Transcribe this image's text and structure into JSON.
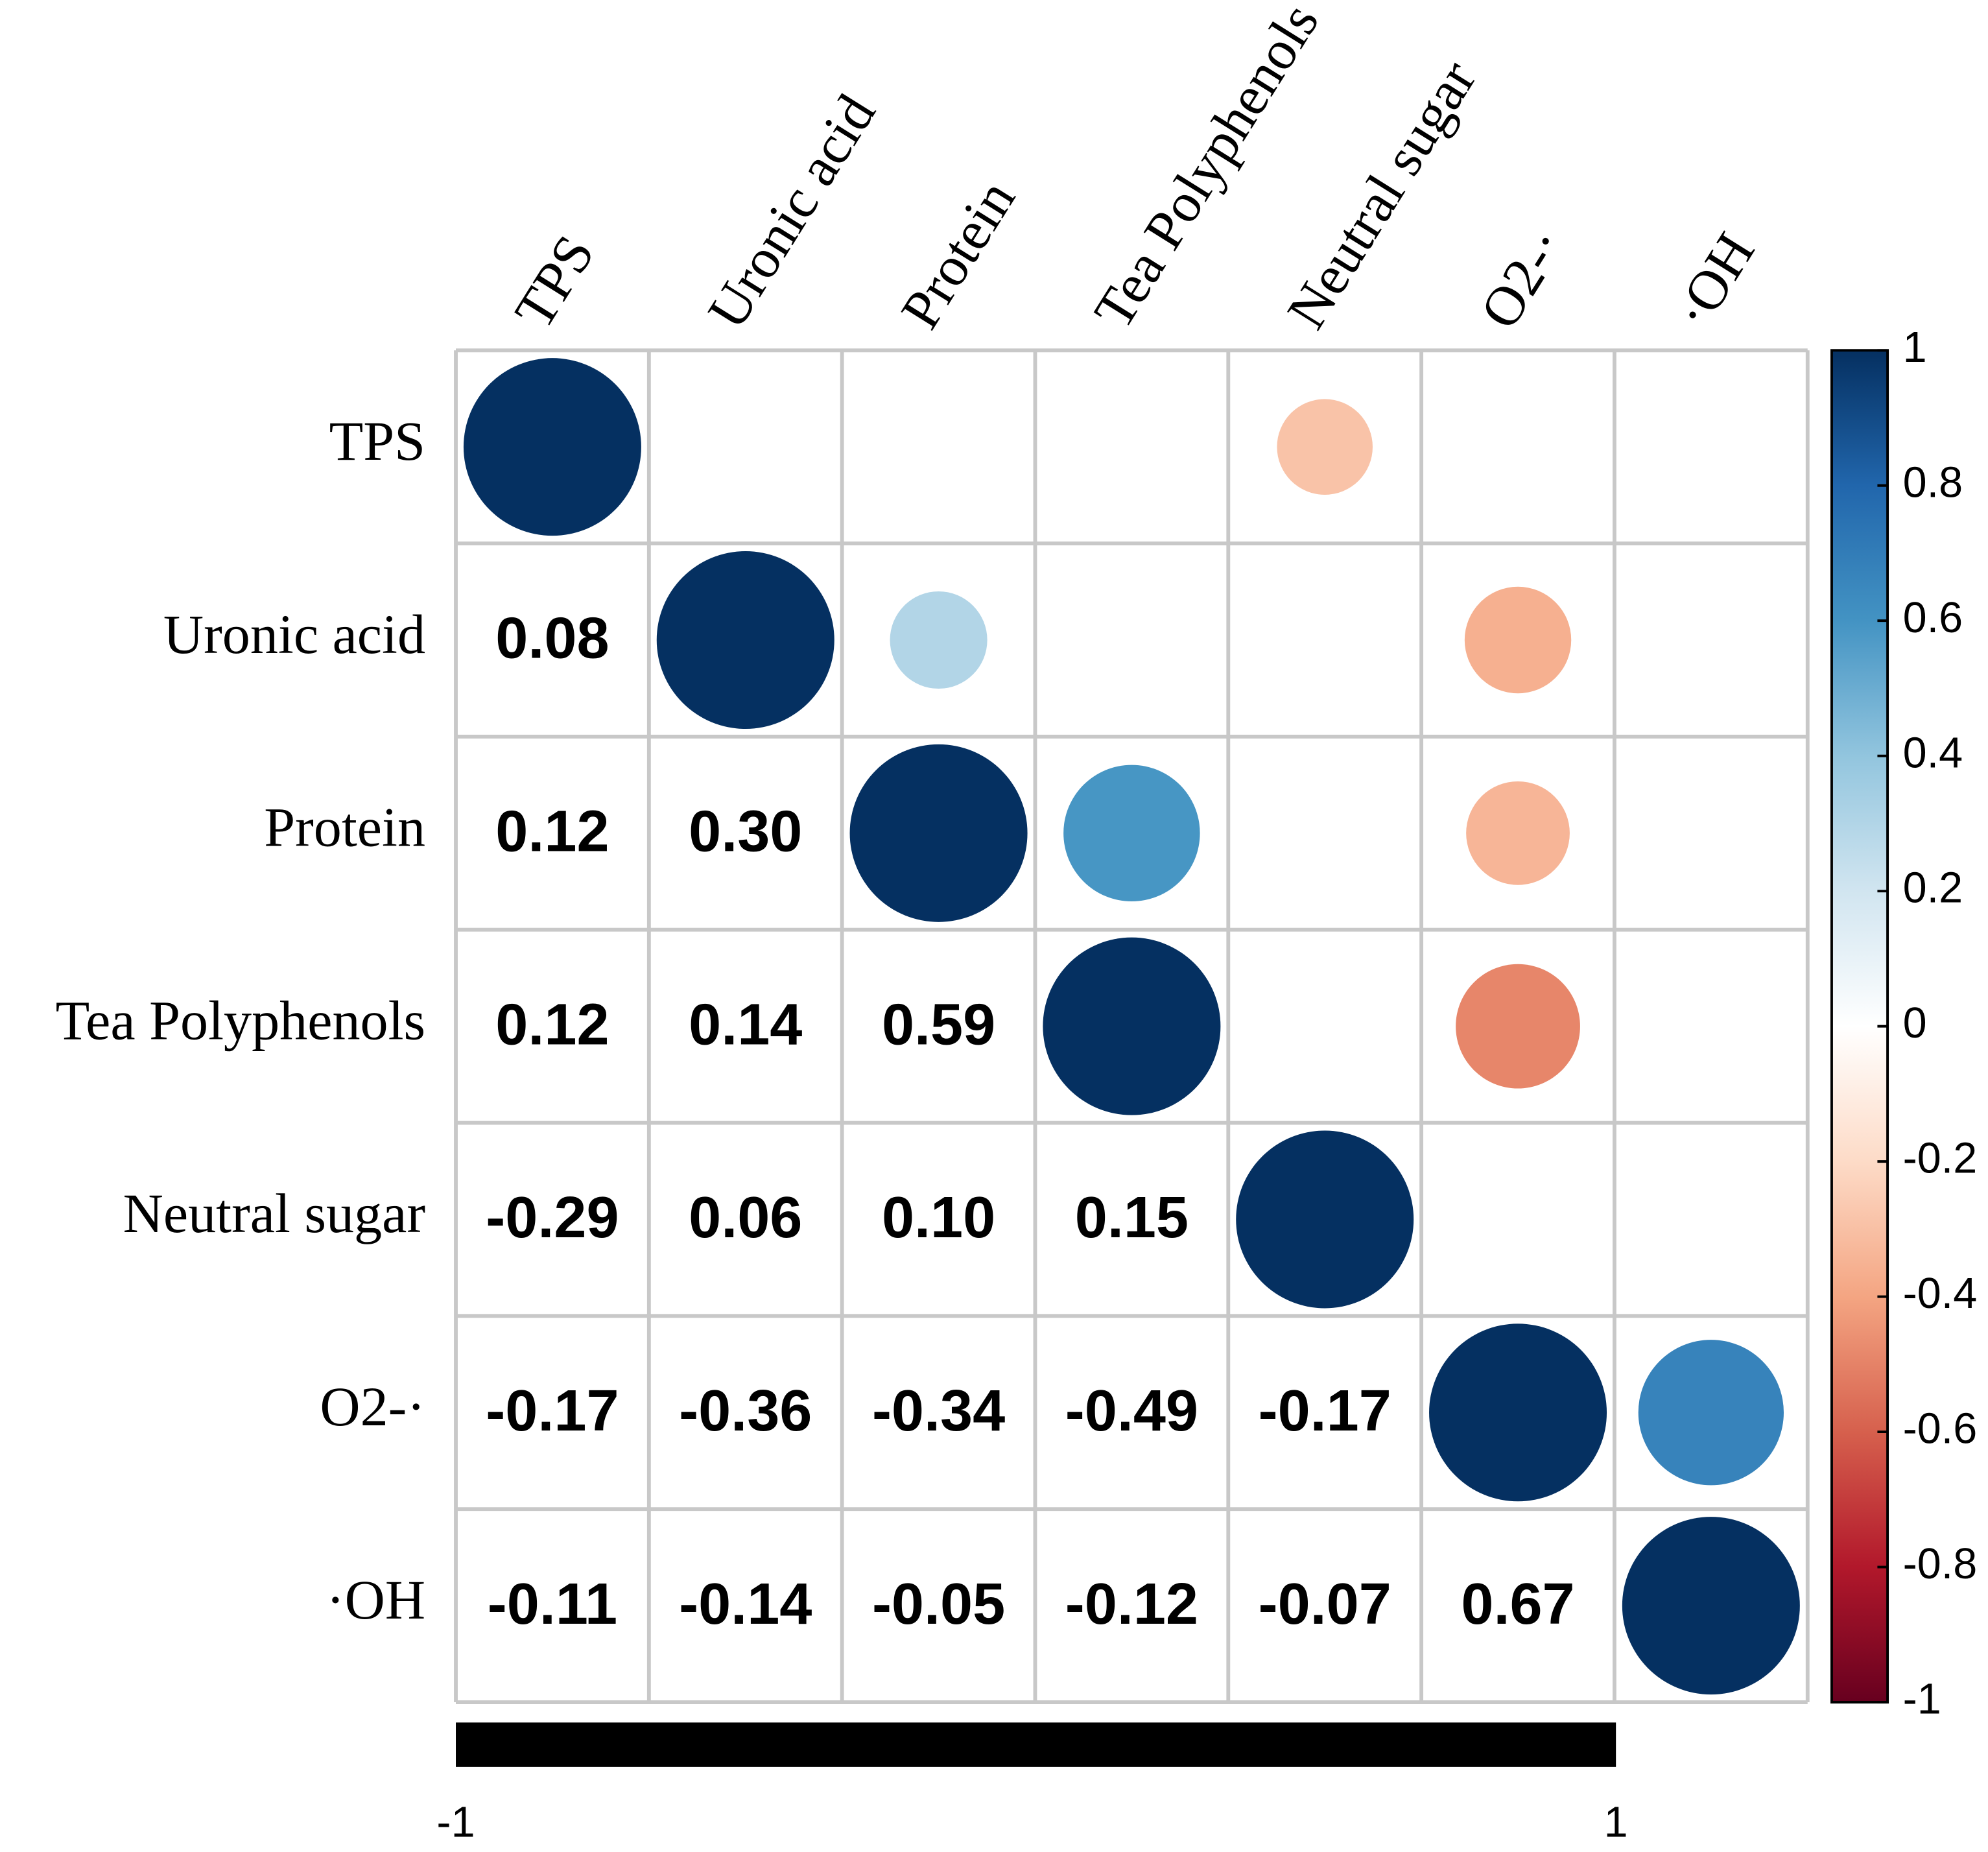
{
  "chart_data": {
    "type": "corrplot",
    "labels": [
      "TPS",
      "Uronic acid",
      "Protein",
      "Tea Polyphenols",
      "Neutral sugar",
      "O2-·",
      "·OH"
    ],
    "matrix": [
      [
        1,
        null,
        null,
        null,
        -0.29,
        null,
        null
      ],
      [
        0.08,
        1,
        0.3,
        null,
        null,
        -0.36,
        null
      ],
      [
        0.12,
        0.3,
        1,
        0.59,
        null,
        -0.34,
        null
      ],
      [
        0.12,
        0.14,
        0.59,
        1,
        null,
        -0.49,
        null
      ],
      [
        -0.29,
        0.06,
        0.1,
        0.15,
        1,
        null,
        null
      ],
      [
        -0.17,
        -0.36,
        -0.34,
        -0.49,
        -0.17,
        1,
        0.67
      ],
      [
        -0.11,
        -0.14,
        -0.05,
        -0.12,
        -0.07,
        0.67,
        1
      ]
    ],
    "value_labels": [
      [
        null,
        null,
        null,
        null,
        null,
        null,
        null
      ],
      [
        "0.08",
        null,
        null,
        null,
        null,
        null,
        null
      ],
      [
        "0.12",
        "0.30",
        null,
        null,
        null,
        null,
        null
      ],
      [
        "0.12",
        "0.14",
        "0.59",
        null,
        null,
        null,
        null
      ],
      [
        "-0.29",
        "0.06",
        "0.10",
        "0.15",
        null,
        null,
        null
      ],
      [
        "-0.17",
        "-0.36",
        "-0.34",
        "-0.49",
        "-0.17",
        null,
        null
      ],
      [
        "-0.11",
        "-0.14",
        "-0.05",
        "-0.12",
        "-0.07",
        "0.67",
        null
      ]
    ],
    "colorbar_lim": [
      -1,
      1
    ],
    "colorbar_ticks": [
      1,
      0.8,
      0.6,
      0.4,
      0.2,
      0,
      -0.2,
      -0.4,
      -0.6,
      -0.8,
      -1
    ],
    "colorbar_colors": [
      "#053061",
      "#2166AC",
      "#4393C3",
      "#92C5DE",
      "#D1E5F0",
      "#FFFFFF",
      "#FDDBC7",
      "#F4A582",
      "#D6604D",
      "#B2182B",
      "#67001F"
    ],
    "xlim": [
      -1,
      1
    ],
    "xticks": [
      -1,
      1
    ]
  }
}
